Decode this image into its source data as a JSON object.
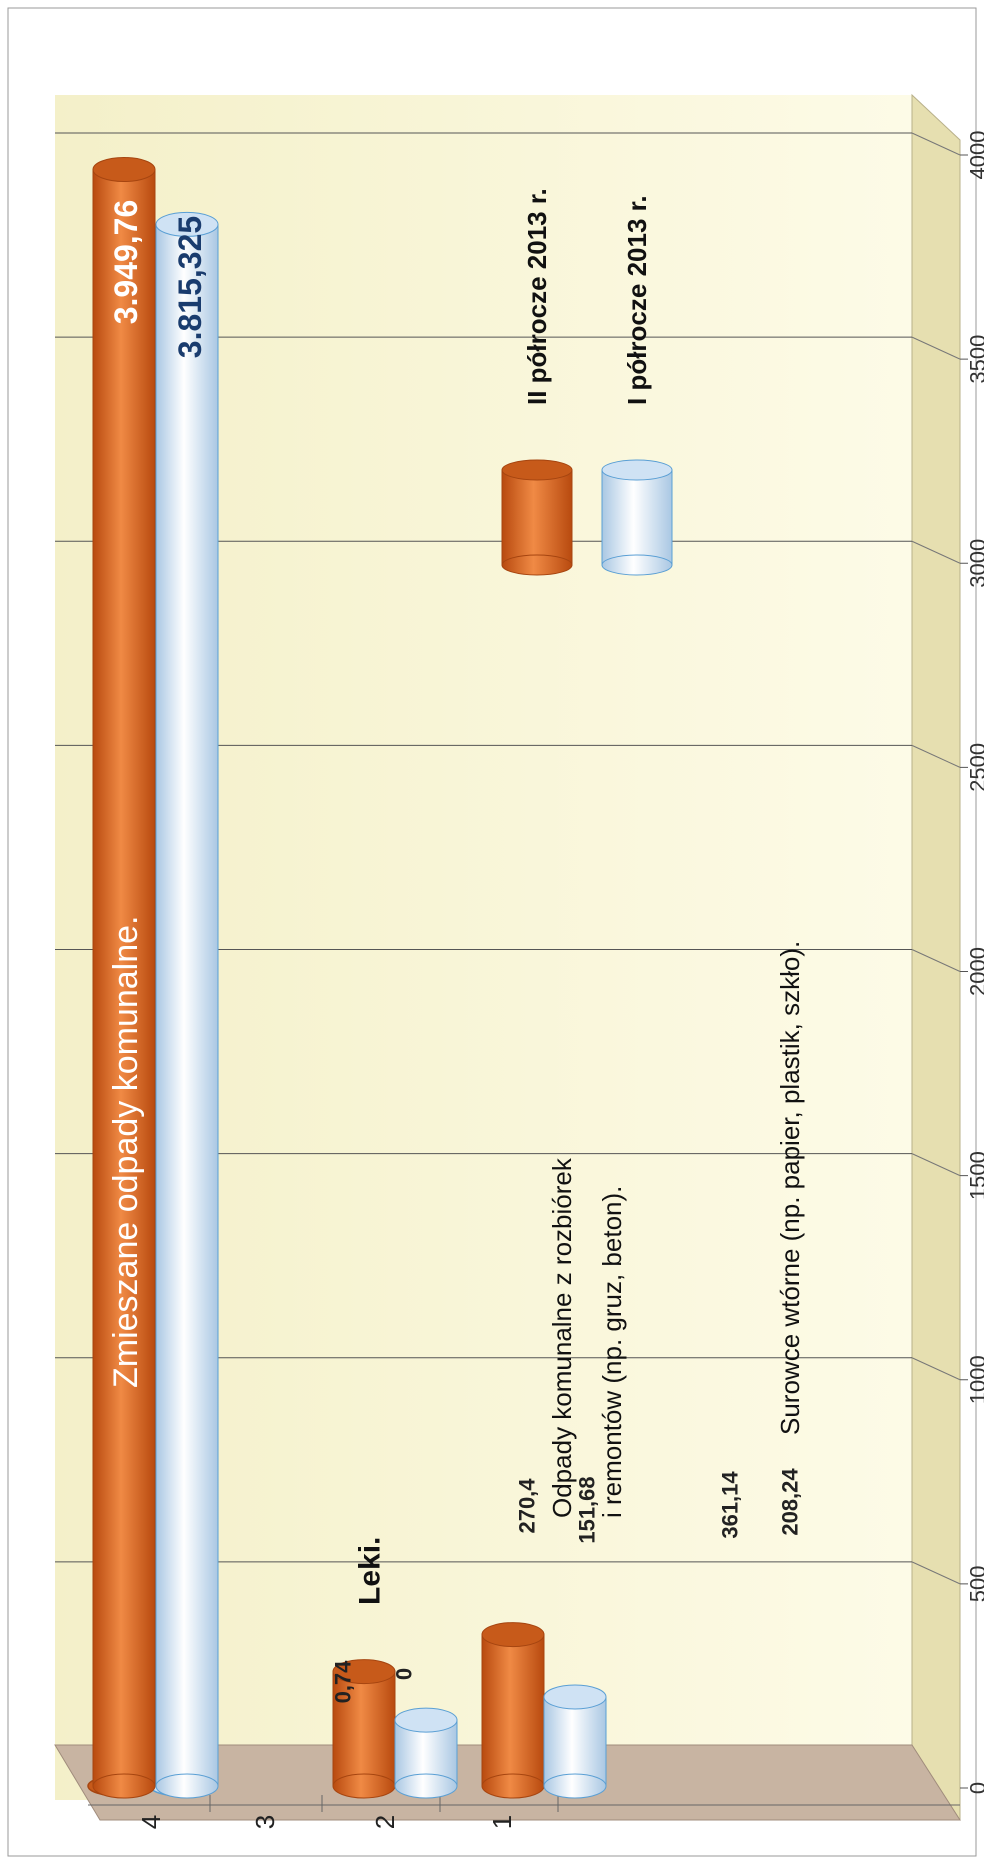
{
  "chart_data": {
    "type": "bar",
    "orientation": "horizontal",
    "style": "3d-cylinder",
    "categories": [
      "1",
      "2",
      "3",
      "4"
    ],
    "category_labels": {
      "1": "Surowce wtórne (np. papier, plastik, szkło).",
      "2": [
        "Odpady komunalne z rozbiórek",
        "i remontów (np. gruz, beton)."
      ],
      "3": "Leki.",
      "4": "Zmieszane odpady komunalne."
    },
    "series": [
      {
        "name": "II półrocze 2013 r.",
        "color": "#e0651e",
        "values": [
          361.14,
          270.4,
          0.74,
          3949.76
        ],
        "labels": [
          "361,14",
          "270,4",
          "0,74",
          "3.949,76"
        ]
      },
      {
        "name": "I półrocze 2013 r.",
        "color": "#dbeaf7",
        "values": [
          208.24,
          151.68,
          0,
          3815.325
        ],
        "labels": [
          "208,24",
          "151,68",
          "0",
          "3.815,325"
        ]
      }
    ],
    "xlim": [
      0,
      4000
    ],
    "xticks": [
      "0",
      "500",
      "1000",
      "1500",
      "2000",
      "2500",
      "3000",
      "3500",
      "4000"
    ],
    "grid": true,
    "legend_position": "right"
  }
}
